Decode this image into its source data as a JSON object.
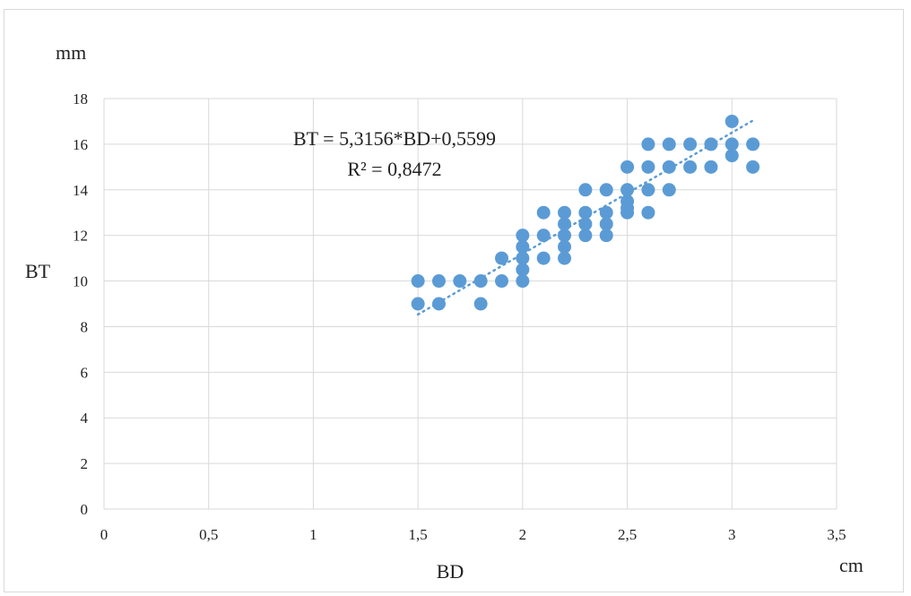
{
  "chart_data": {
    "type": "scatter",
    "title": "",
    "xlabel": "BD",
    "ylabel": "BT",
    "x_unit": "cm",
    "y_unit": "mm",
    "xlim": [
      0,
      3.5
    ],
    "ylim": [
      0,
      18
    ],
    "x_ticks": [
      "0",
      "0,5",
      "1",
      "1,5",
      "2",
      "2,5",
      "3",
      "3,5"
    ],
    "y_ticks": [
      "0",
      "2",
      "4",
      "6",
      "8",
      "10",
      "12",
      "14",
      "16",
      "18"
    ],
    "grid": true,
    "trendline": {
      "style": "dotted",
      "equation": "BT = 5,3156*BD+0,5599",
      "r_squared": "R² = 0,8472",
      "slope": 5.3156,
      "intercept": 0.5599,
      "x_range": [
        1.5,
        3.1
      ]
    },
    "colors": {
      "point": "#5b9bd5",
      "trend": "#5b9bd5",
      "grid": "#d9d9d9"
    },
    "points": [
      [
        1.5,
        10
      ],
      [
        1.5,
        9
      ],
      [
        1.6,
        10
      ],
      [
        1.6,
        9
      ],
      [
        1.7,
        10
      ],
      [
        1.8,
        10
      ],
      [
        1.8,
        9
      ],
      [
        1.9,
        11
      ],
      [
        1.9,
        10
      ],
      [
        2.0,
        12
      ],
      [
        2.0,
        11.5
      ],
      [
        2.0,
        11
      ],
      [
        2.0,
        10.5
      ],
      [
        2.0,
        10
      ],
      [
        2.1,
        13
      ],
      [
        2.1,
        12
      ],
      [
        2.1,
        11
      ],
      [
        2.2,
        13
      ],
      [
        2.2,
        12.5
      ],
      [
        2.2,
        12
      ],
      [
        2.2,
        11.5
      ],
      [
        2.2,
        11
      ],
      [
        2.3,
        14
      ],
      [
        2.3,
        13
      ],
      [
        2.3,
        12.5
      ],
      [
        2.3,
        12
      ],
      [
        2.4,
        14
      ],
      [
        2.4,
        13
      ],
      [
        2.4,
        12.5
      ],
      [
        2.4,
        12
      ],
      [
        2.5,
        15
      ],
      [
        2.5,
        14
      ],
      [
        2.5,
        13.5
      ],
      [
        2.5,
        13.2
      ],
      [
        2.5,
        13
      ],
      [
        2.6,
        16
      ],
      [
        2.6,
        15
      ],
      [
        2.6,
        14
      ],
      [
        2.6,
        13
      ],
      [
        2.7,
        16
      ],
      [
        2.7,
        15
      ],
      [
        2.7,
        14
      ],
      [
        2.8,
        16
      ],
      [
        2.8,
        15
      ],
      [
        2.9,
        16
      ],
      [
        2.9,
        15
      ],
      [
        3.0,
        17
      ],
      [
        3.0,
        16
      ],
      [
        3.0,
        15.5
      ],
      [
        3.1,
        16
      ],
      [
        3.1,
        15
      ]
    ]
  }
}
